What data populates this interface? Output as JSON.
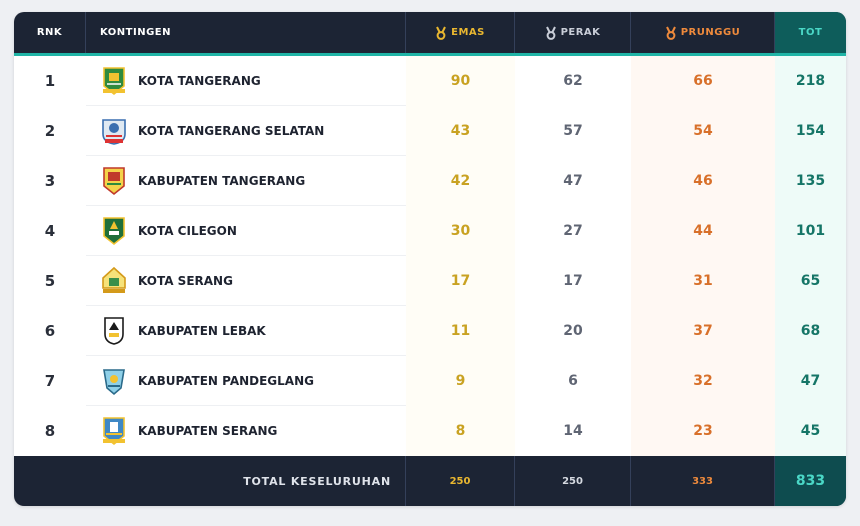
{
  "colors": {
    "header_bg": "#1c2434",
    "accent_teal": "#1fb4a6",
    "gold": "#c9a222",
    "silver": "#5f6573",
    "bronze": "#d8702a",
    "total": "#157567"
  },
  "table": {
    "headers": {
      "rank": "RNK",
      "contingent": "KONTINGEN",
      "gold": "EMAS",
      "silver": "PERAK",
      "bronze": "PRUNGGU",
      "total": "TOT"
    },
    "header_icons": {
      "gold": "gold-medal-icon",
      "silver": "silver-medal-icon",
      "bronze": "bronze-medal-icon"
    },
    "rows": [
      {
        "rank": "1",
        "name": "KOTA TANGERANG",
        "gold": "90",
        "silver": "62",
        "bronze": "66",
        "total": "218",
        "logo_icon": "kota-tangerang-emblem-icon"
      },
      {
        "rank": "2",
        "name": "KOTA TANGERANG SELATAN",
        "gold": "43",
        "silver": "57",
        "bronze": "54",
        "total": "154",
        "logo_icon": "kota-tangerang-selatan-emblem-icon"
      },
      {
        "rank": "3",
        "name": "KABUPATEN TANGERANG",
        "gold": "42",
        "silver": "47",
        "bronze": "46",
        "total": "135",
        "logo_icon": "kabupaten-tangerang-emblem-icon"
      },
      {
        "rank": "4",
        "name": "KOTA CILEGON",
        "gold": "30",
        "silver": "27",
        "bronze": "44",
        "total": "101",
        "logo_icon": "kota-cilegon-emblem-icon"
      },
      {
        "rank": "5",
        "name": "KOTA SERANG",
        "gold": "17",
        "silver": "17",
        "bronze": "31",
        "total": "65",
        "logo_icon": "kota-serang-emblem-icon"
      },
      {
        "rank": "6",
        "name": "KABUPATEN LEBAK",
        "gold": "11",
        "silver": "20",
        "bronze": "37",
        "total": "68",
        "logo_icon": "kabupaten-lebak-emblem-icon"
      },
      {
        "rank": "7",
        "name": "KABUPATEN PANDEGLANG",
        "gold": "9",
        "silver": "6",
        "bronze": "32",
        "total": "47",
        "logo_icon": "kabupaten-pandeglang-emblem-icon"
      },
      {
        "rank": "8",
        "name": "KABUPATEN SERANG",
        "gold": "8",
        "silver": "14",
        "bronze": "23",
        "total": "45",
        "logo_icon": "kabupaten-serang-emblem-icon"
      }
    ],
    "footer": {
      "label": "TOTAL KESELURUHAN",
      "gold": "250",
      "silver": "250",
      "bronze": "333",
      "total": "833"
    }
  }
}
